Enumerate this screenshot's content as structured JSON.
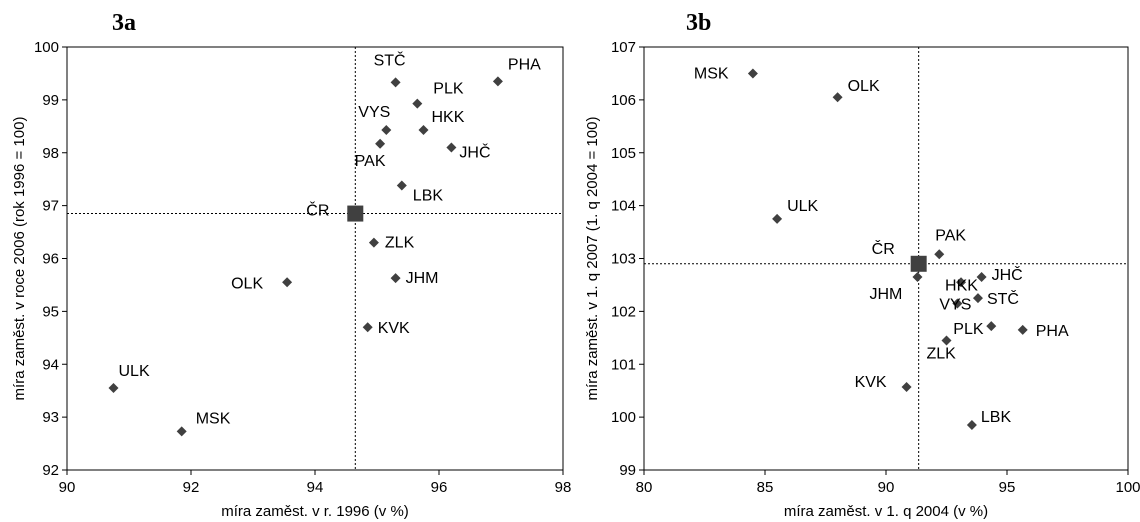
{
  "chart_data": [
    {
      "type": "scatter",
      "title": "3a",
      "xlabel": "míra zaměst. v r. 1996 (v %)",
      "ylabel": "míra zaměst. v roce 2006 (rok 1996 = 100)",
      "xlim": [
        90,
        98
      ],
      "ylim": [
        92,
        100
      ],
      "xticks": [
        90,
        92,
        94,
        96,
        98
      ],
      "yticks": [
        92,
        93,
        94,
        95,
        96,
        97,
        98,
        99,
        100
      ],
      "grid": false,
      "reference": {
        "name": "ČR",
        "x": 94.65,
        "y": 96.85
      },
      "points": [
        {
          "name": "PHA",
          "x": 96.95,
          "y": 99.35
        },
        {
          "name": "STČ",
          "x": 95.3,
          "y": 99.33
        },
        {
          "name": "PLK",
          "x": 95.65,
          "y": 98.93
        },
        {
          "name": "VYS",
          "x": 95.15,
          "y": 98.43
        },
        {
          "name": "HKK",
          "x": 95.75,
          "y": 98.43
        },
        {
          "name": "PAK",
          "x": 95.05,
          "y": 98.17
        },
        {
          "name": "JHČ",
          "x": 96.2,
          "y": 98.1
        },
        {
          "name": "LBK",
          "x": 95.4,
          "y": 97.38
        },
        {
          "name": "ZLK",
          "x": 94.95,
          "y": 96.3
        },
        {
          "name": "JHM",
          "x": 95.3,
          "y": 95.63
        },
        {
          "name": "OLK",
          "x": 93.55,
          "y": 95.55
        },
        {
          "name": "KVK",
          "x": 94.85,
          "y": 94.7
        },
        {
          "name": "ULK",
          "x": 90.75,
          "y": 93.55
        },
        {
          "name": "MSK",
          "x": 91.85,
          "y": 92.73
        }
      ]
    },
    {
      "type": "scatter",
      "title": "3b",
      "xlabel": "míra zaměst. v 1. q 2004 (v %)",
      "ylabel": "míra zaměst. v 1. q 2007 (1. q 2004 = 100)",
      "xlim": [
        80,
        100
      ],
      "ylim": [
        99,
        107
      ],
      "xticks": [
        80,
        85,
        90,
        95,
        100
      ],
      "yticks": [
        99,
        100,
        101,
        102,
        103,
        104,
        105,
        106,
        107
      ],
      "grid": false,
      "reference": {
        "name": "ČR",
        "x": 91.35,
        "y": 102.9
      },
      "points": [
        {
          "name": "MSK",
          "x": 84.5,
          "y": 106.5
        },
        {
          "name": "OLK",
          "x": 88.0,
          "y": 106.05
        },
        {
          "name": "ULK",
          "x": 85.5,
          "y": 103.75
        },
        {
          "name": "PAK",
          "x": 92.2,
          "y": 103.08
        },
        {
          "name": "JHM",
          "x": 91.3,
          "y": 102.65
        },
        {
          "name": "HKK",
          "x": 93.1,
          "y": 102.55
        },
        {
          "name": "JHČ",
          "x": 93.95,
          "y": 102.65
        },
        {
          "name": "STČ",
          "x": 93.8,
          "y": 102.25
        },
        {
          "name": "VYS",
          "x": 92.95,
          "y": 102.15
        },
        {
          "name": "ZLK",
          "x": 92.5,
          "y": 101.45
        },
        {
          "name": "PLK",
          "x": 94.35,
          "y": 101.72
        },
        {
          "name": "PHA",
          "x": 95.65,
          "y": 101.65
        },
        {
          "name": "KVK",
          "x": 90.85,
          "y": 100.57
        },
        {
          "name": "LBK",
          "x": 93.55,
          "y": 99.85
        }
      ]
    }
  ]
}
